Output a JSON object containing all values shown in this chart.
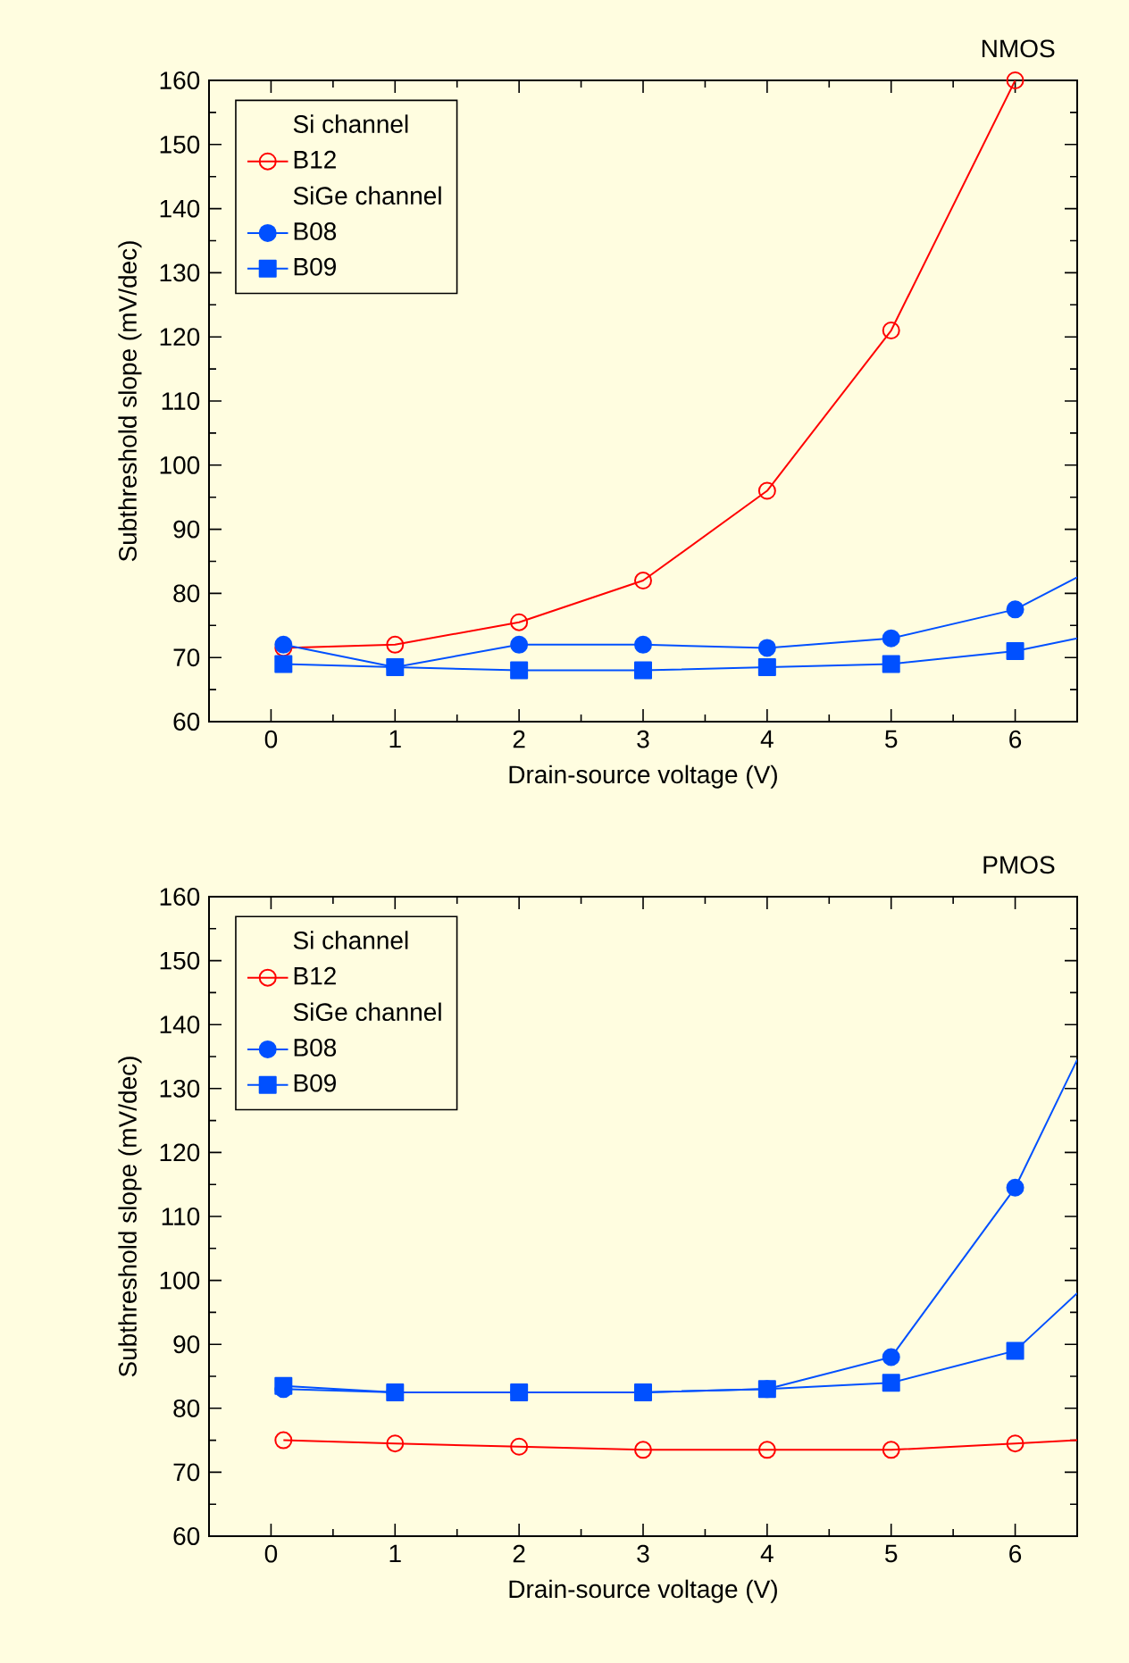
{
  "chart_data": [
    {
      "type": "line",
      "title": "NMOS",
      "xlabel": "Drain-source voltage (V)",
      "ylabel": "Subthreshold slope (mV/dec)",
      "annotations": [
        "Si channel",
        "SiGe channel"
      ],
      "xlim": [
        -0.5,
        6.5
      ],
      "ylim": [
        60,
        160
      ],
      "xticks": [
        0,
        1,
        2,
        3,
        4,
        5,
        6
      ],
      "yticks": [
        60,
        70,
        80,
        90,
        100,
        110,
        120,
        130,
        140,
        150,
        160
      ],
      "legend": "top left",
      "grid": false,
      "series": [
        {
          "name": "B12",
          "color": "#ff0000",
          "marker": "open circle",
          "x": [
            0.1,
            1,
            2,
            3,
            4,
            5,
            6
          ],
          "values": [
            71.5,
            72,
            75.5,
            82,
            96,
            121,
            160
          ]
        },
        {
          "name": "B08",
          "color": "#0050ff",
          "marker": "circle",
          "x": [
            0.1,
            1,
            2,
            3,
            4,
            5,
            6,
            6.5
          ],
          "values": [
            72,
            68.5,
            72,
            72,
            71.5,
            73,
            77.5,
            82.5
          ]
        },
        {
          "name": "B09",
          "color": "#0050ff",
          "marker": "square",
          "x": [
            0.1,
            1,
            2,
            3,
            4,
            5,
            6,
            6.5
          ],
          "values": [
            69,
            68.5,
            68,
            68,
            68.5,
            69,
            71,
            73
          ]
        }
      ]
    },
    {
      "type": "line",
      "title": "PMOS",
      "xlabel": "Drain-source voltage (V)",
      "ylabel": "Subthreshold slope (mV/dec)",
      "annotations": [
        "Si channel",
        "SiGe channel"
      ],
      "xlim": [
        -0.5,
        6.5
      ],
      "ylim": [
        60,
        160
      ],
      "xticks": [
        0,
        1,
        2,
        3,
        4,
        5,
        6
      ],
      "yticks": [
        60,
        70,
        80,
        90,
        100,
        110,
        120,
        130,
        140,
        150,
        160
      ],
      "legend": "top left",
      "grid": false,
      "series": [
        {
          "name": "B12",
          "color": "#ff0000",
          "marker": "open circle",
          "x": [
            0.1,
            1,
            2,
            3,
            4,
            5,
            6,
            6.5
          ],
          "values": [
            75,
            74.5,
            74,
            73.5,
            73.5,
            73.5,
            74.5,
            75
          ]
        },
        {
          "name": "B08",
          "color": "#0050ff",
          "marker": "circle",
          "x": [
            0.1,
            1,
            2,
            3,
            4,
            5,
            6,
            6.5
          ],
          "values": [
            83,
            82.5,
            82.5,
            82.5,
            83,
            88,
            114.5,
            134.5
          ]
        },
        {
          "name": "B09",
          "color": "#0050ff",
          "marker": "square",
          "x": [
            0.1,
            1,
            2,
            3,
            4,
            5,
            6,
            6.5
          ],
          "values": [
            83.5,
            82.5,
            82.5,
            82.5,
            83,
            84,
            89,
            98
          ]
        }
      ]
    }
  ]
}
